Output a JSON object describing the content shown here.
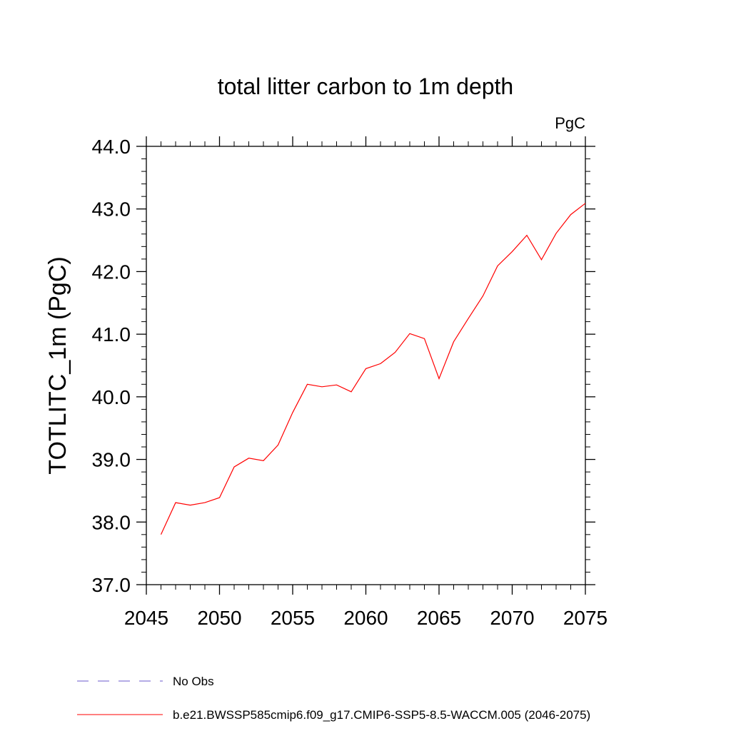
{
  "chart_data": {
    "type": "line",
    "title": "total litter carbon to 1m depth",
    "units": "PgC",
    "ylabel": "TOTLITC_1m  (PgC)",
    "xlabel": "",
    "xlim": [
      2045,
      2075
    ],
    "ylim": [
      37.0,
      44.0
    ],
    "x_ticks": [
      2045,
      2050,
      2055,
      2060,
      2065,
      2070,
      2075
    ],
    "x_tick_labels": [
      "2045",
      "2050",
      "2055",
      "2060",
      "2065",
      "2070",
      "2075"
    ],
    "y_ticks": [
      37.0,
      38.0,
      39.0,
      40.0,
      41.0,
      42.0,
      43.0,
      44.0
    ],
    "y_tick_labels": [
      "37.0",
      "38.0",
      "39.0",
      "40.0",
      "41.0",
      "42.0",
      "43.0",
      "44.0"
    ],
    "grid": false,
    "legend_placement": "bottom",
    "legend": [
      {
        "label": "No Obs",
        "color": "#6a5acd",
        "style": "dashed"
      },
      {
        "label": "b.e21.BWSSP585cmip6.f09_g17.CMIP6-SSP5-8.5-WACCM.005 (2046-2075)",
        "color": "#ff0000",
        "style": "solid"
      }
    ],
    "series": [
      {
        "color": "#ff0000",
        "x": [
          2046,
          2047,
          2048,
          2049,
          2050,
          2051,
          2052,
          2053,
          2054,
          2055,
          2056,
          2057,
          2058,
          2059,
          2060,
          2061,
          2062,
          2063,
          2064,
          2065,
          2066,
          2067,
          2068,
          2069,
          2070,
          2071,
          2072,
          2073,
          2074,
          2075
        ],
        "values": [
          37.8,
          38.31,
          38.27,
          38.31,
          38.39,
          38.88,
          39.02,
          38.98,
          39.23,
          39.75,
          40.2,
          40.16,
          40.19,
          40.08,
          40.45,
          40.53,
          40.71,
          41.01,
          40.93,
          40.29,
          40.88,
          41.25,
          41.61,
          42.09,
          42.32,
          42.58,
          42.19,
          42.61,
          42.91,
          43.09
        ]
      }
    ]
  }
}
